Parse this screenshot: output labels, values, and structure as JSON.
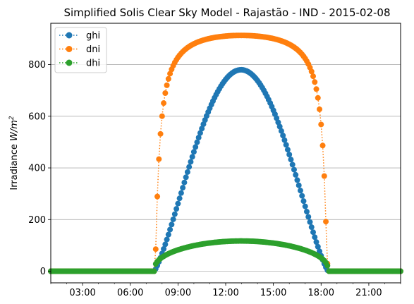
{
  "chart_data": {
    "type": "line",
    "title": "Simplified Solis Clear Sky Model - Rajastão - IND - 2015-02-08",
    "xlabel": "",
    "ylabel_main": "Irradiance ",
    "ylabel_unit": "W/m",
    "ylabel_exp": "2",
    "x_unit": "hours",
    "xlim": [
      1.0,
      23.0
    ],
    "ylim": [
      -45,
      960
    ],
    "x_ticks": [
      {
        "value": 3,
        "label": "03:00"
      },
      {
        "value": 6,
        "label": "06:00"
      },
      {
        "value": 9,
        "label": "09:00"
      },
      {
        "value": 12,
        "label": "12:00"
      },
      {
        "value": 15,
        "label": "15:00"
      },
      {
        "value": 18,
        "label": "18:00"
      },
      {
        "value": 21,
        "label": "21:00"
      }
    ],
    "y_ticks": [
      {
        "value": 0,
        "label": "0"
      },
      {
        "value": 200,
        "label": "200"
      },
      {
        "value": 400,
        "label": "400"
      },
      {
        "value": 600,
        "label": "600"
      },
      {
        "value": 800,
        "label": "800"
      }
    ],
    "grid": "y-major",
    "legend_position": "upper-left",
    "x_step_hours": 0.1,
    "sunrise_hour": 7.5,
    "sunset_hour": 18.45,
    "noon_hour": 12.97,
    "series": [
      {
        "name": "ghi",
        "color": "#1f77b4",
        "peak": 780
      },
      {
        "name": "dni",
        "color": "#ff7f0e",
        "peak": 913
      },
      {
        "name": "dhi",
        "color": "#2ca02c",
        "peak": 117
      }
    ]
  }
}
